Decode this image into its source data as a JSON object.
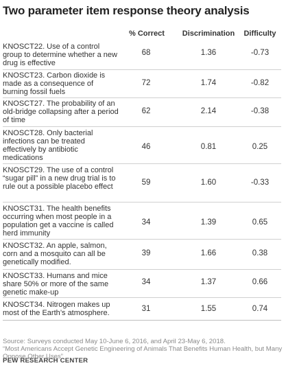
{
  "title": "Two parameter item response theory analysis",
  "columns": [
    "% Correct",
    "Discrimination",
    "Difficulty"
  ],
  "rows": [
    {
      "question": "KNOSCT22. Use of a control group to determine whether a new drug is effective",
      "correct": "68",
      "discrimination": "1.36",
      "difficulty": "-0.73"
    },
    {
      "question": "KNOSCT23. Carbon dioxide is made as a consequence of burning fossil fuels",
      "correct": "72",
      "discrimination": "1.74",
      "difficulty": "-0.82"
    },
    {
      "question": "KNOSCT27. The probability of an old-bridge collapsing after a period of time",
      "correct": "62",
      "discrimination": "2.14",
      "difficulty": "-0.38"
    },
    {
      "question": "KNOSCT28. Only bacterial infections can be treated effectively by antibiotic medications",
      "correct": "46",
      "discrimination": "0.81",
      "difficulty": "0.25"
    },
    {
      "question": "KNOSCT29. The use of a control “sugar pill” in a new drug trial is to rule out a possible placebo effect",
      "correct": "59",
      "discrimination": "1.60",
      "difficulty": "-0.33"
    },
    {
      "question": "KNOSCT31. The health benefits occurring when most people in a population get a vaccine is called herd immunity",
      "correct": "34",
      "discrimination": "1.39",
      "difficulty": "0.65"
    },
    {
      "question": "KNOSCT32. An apple, salmon, corn and a mosquito can all be genetically modified.",
      "correct": "39",
      "discrimination": "1.66",
      "difficulty": "0.38"
    },
    {
      "question": "KNOSCT33. Humans and mice share 50% or more of the same genetic make-up",
      "correct": "34",
      "discrimination": "1.37",
      "difficulty": "0.66"
    },
    {
      "question": "KNOSCT34. Nitrogen makes up most of the Earth’s atmosphere.",
      "correct": "31",
      "discrimination": "1.55",
      "difficulty": "0.74"
    }
  ],
  "source": "Source: Surveys conducted May 10-June 6, 2016, and April 23-May 6, 2018.",
  "citation": "“Most Americans Accept Genetic Engineering of Animals That Benefits Human Health, but Many Oppose Other Uses”",
  "brand": "PEW RESEARCH CENTER"
}
